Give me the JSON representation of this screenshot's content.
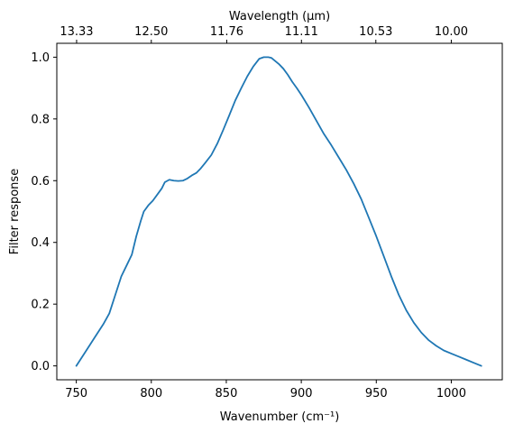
{
  "chart_data": {
    "type": "line",
    "title": "",
    "xlabel": "Wavenumber (cm⁻¹)",
    "ylabel": "Filter response",
    "secondary_xlabel": "Wavelength (μm)",
    "xlim": [
      737,
      1034
    ],
    "ylim": [
      -0.045,
      1.045
    ],
    "x_ticks": [
      750,
      800,
      850,
      900,
      950,
      1000
    ],
    "y_ticks": [
      0.0,
      0.2,
      0.4,
      0.6,
      0.8,
      1.0
    ],
    "y_tick_labels": [
      "0.0",
      "0.2",
      "0.4",
      "0.6",
      "0.8",
      "1.0"
    ],
    "secondary_x_ticks": [
      {
        "label": "13.33",
        "wavenumber": 750.2
      },
      {
        "label": "12.50",
        "wavenumber": 800.0
      },
      {
        "label": "11.76",
        "wavenumber": 850.3
      },
      {
        "label": "11.11",
        "wavenumber": 900.1
      },
      {
        "label": "10.53",
        "wavenumber": 949.7
      },
      {
        "label": "10.00",
        "wavenumber": 1000.0
      }
    ],
    "grid": false,
    "color": "#1f77b4",
    "series": [
      {
        "x": [
          750,
          756,
          762,
          768,
          772,
          776,
          780,
          784,
          787,
          790,
          793,
          795,
          798,
          801,
          804,
          807,
          809,
          812,
          815,
          818,
          821,
          824,
          827,
          830,
          833,
          836,
          840,
          844,
          848,
          852,
          856,
          860,
          864,
          868,
          872,
          875,
          878,
          880,
          882,
          885,
          888,
          891,
          894,
          897,
          900,
          905,
          910,
          915,
          920,
          925,
          930,
          935,
          940,
          945,
          950,
          955,
          960,
          965,
          970,
          975,
          980,
          985,
          990,
          995,
          1000,
          1005,
          1010,
          1015,
          1020
        ],
        "y": [
          0.0,
          0.045,
          0.09,
          0.135,
          0.17,
          0.23,
          0.29,
          0.33,
          0.36,
          0.42,
          0.47,
          0.5,
          0.52,
          0.535,
          0.555,
          0.575,
          0.595,
          0.603,
          0.6,
          0.599,
          0.6,
          0.607,
          0.617,
          0.625,
          0.64,
          0.658,
          0.683,
          0.72,
          0.765,
          0.812,
          0.86,
          0.9,
          0.938,
          0.97,
          0.995,
          1.0,
          1.0,
          0.998,
          0.99,
          0.978,
          0.963,
          0.943,
          0.92,
          0.9,
          0.878,
          0.838,
          0.795,
          0.752,
          0.715,
          0.675,
          0.635,
          0.59,
          0.54,
          0.48,
          0.42,
          0.355,
          0.29,
          0.23,
          0.18,
          0.14,
          0.108,
          0.083,
          0.065,
          0.05,
          0.04,
          0.03,
          0.02,
          0.01,
          0.0
        ]
      }
    ]
  }
}
